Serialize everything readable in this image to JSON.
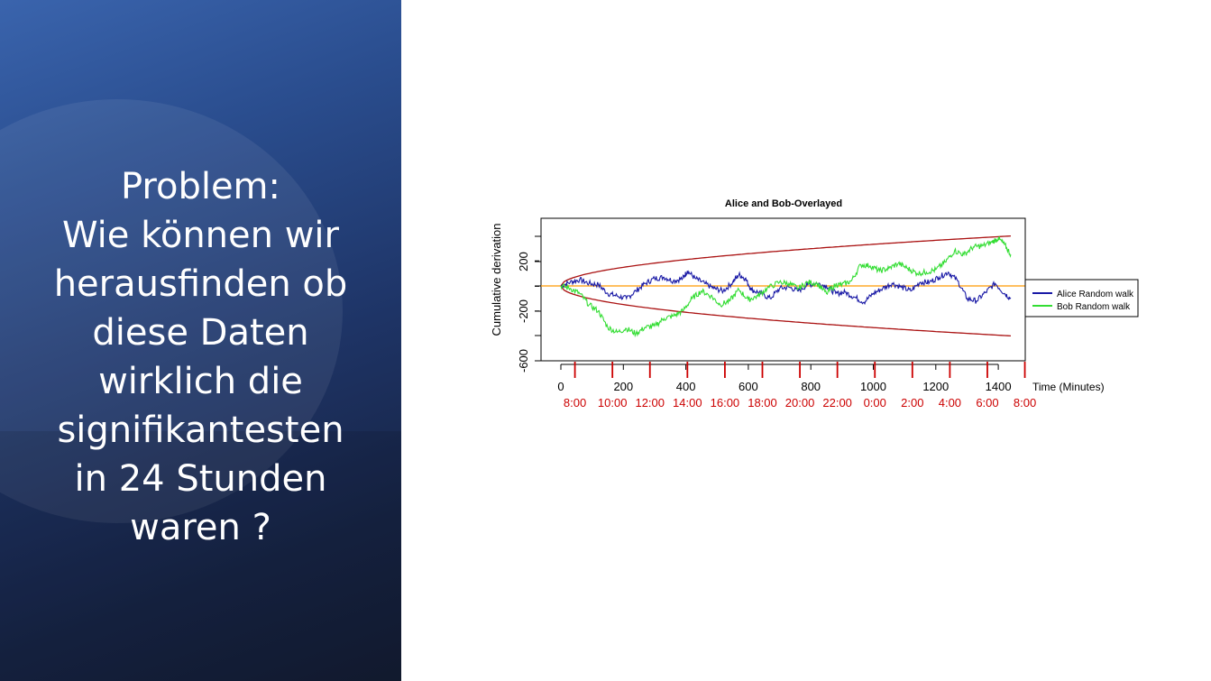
{
  "slide": {
    "lines": [
      "Problem:",
      "Wie können wir",
      "herausfinden ob",
      "diese Daten",
      "wirklich die",
      "signifikantesten",
      "in 24 Stunden",
      "waren ?"
    ]
  },
  "chart_data": {
    "type": "line",
    "title": "Alice and Bob-Overlayed",
    "ylabel": "Cumulative derivation",
    "xlabel": "Time (Minutes)",
    "xlim": [
      0,
      1440
    ],
    "ylim": [
      -600,
      350
    ],
    "xticks": [
      0,
      200,
      400,
      600,
      800,
      1000,
      1200,
      1400
    ],
    "xtick_labels": [
      "0",
      "200",
      "400",
      "600",
      "800",
      "1000",
      "1200",
      "1400"
    ],
    "yticks": [
      -600,
      -200,
      200
    ],
    "ytick_labels": [
      "-600",
      "-200",
      "200"
    ],
    "time_ticks": [
      {
        "x": 45,
        "label": "8:00"
      },
      {
        "x": 165,
        "label": "10:00"
      },
      {
        "x": 285,
        "label": "12:00"
      },
      {
        "x": 405,
        "label": "14:00"
      },
      {
        "x": 525,
        "label": "16:00"
      },
      {
        "x": 645,
        "label": "18:00"
      },
      {
        "x": 765,
        "label": "20:00"
      },
      {
        "x": 885,
        "label": "22:00"
      },
      {
        "x": 1005,
        "label": "0:00"
      },
      {
        "x": 1125,
        "label": "2:00"
      },
      {
        "x": 1245,
        "label": "4:00"
      },
      {
        "x": 1365,
        "label": "6:00"
      },
      {
        "x": 1485,
        "label": "8:00"
      }
    ],
    "legend_position": "right",
    "series": [
      {
        "name": "Alice Random walk",
        "color": "#1a1aa6",
        "x": [
          0,
          30,
          60,
          90,
          120,
          150,
          180,
          210,
          240,
          270,
          300,
          330,
          360,
          390,
          405,
          430,
          460,
          490,
          520,
          550,
          570,
          590,
          610,
          640,
          670,
          700,
          730,
          760,
          790,
          820,
          850,
          880,
          910,
          940,
          970,
          1000,
          1030,
          1060,
          1090,
          1120,
          1150,
          1180,
          1210,
          1240,
          1270,
          1300,
          1330,
          1360,
          1390,
          1420,
          1440
        ],
        "y": [
          0,
          30,
          50,
          20,
          10,
          -60,
          -80,
          -100,
          -40,
          20,
          60,
          70,
          40,
          60,
          120,
          60,
          20,
          -20,
          -40,
          30,
          90,
          60,
          -30,
          -60,
          -100,
          -20,
          -10,
          -40,
          10,
          20,
          0,
          -60,
          -50,
          -90,
          -130,
          -60,
          -20,
          20,
          -10,
          -40,
          30,
          30,
          70,
          110,
          40,
          -100,
          -120,
          -50,
          20,
          -60,
          -100
        ]
      },
      {
        "name": "Bob Random walk",
        "color": "#33dd33",
        "x": [
          0,
          30,
          60,
          90,
          120,
          150,
          180,
          210,
          240,
          270,
          300,
          330,
          360,
          390,
          420,
          450,
          480,
          510,
          540,
          570,
          600,
          630,
          660,
          700,
          730,
          760,
          790,
          820,
          850,
          880,
          900,
          930,
          960,
          990,
          1020,
          1050,
          1080,
          1110,
          1140,
          1170,
          1200,
          1230,
          1260,
          1290,
          1320,
          1350,
          1380,
          1400,
          1420,
          1440
        ],
        "y": [
          0,
          -20,
          -60,
          -150,
          -200,
          -330,
          -370,
          -340,
          -380,
          -330,
          -320,
          -260,
          -240,
          -200,
          -100,
          -40,
          -80,
          -150,
          -120,
          -30,
          -110,
          -80,
          -20,
          30,
          20,
          -20,
          30,
          20,
          -60,
          10,
          10,
          40,
          170,
          160,
          120,
          140,
          180,
          140,
          100,
          110,
          130,
          190,
          280,
          250,
          310,
          320,
          350,
          380,
          330,
          250
        ]
      }
    ],
    "reference_line": {
      "y": 0,
      "color": "#ff9900"
    },
    "envelope": {
      "color": "#aa1111",
      "upper_label": "",
      "lower_label": ""
    }
  }
}
